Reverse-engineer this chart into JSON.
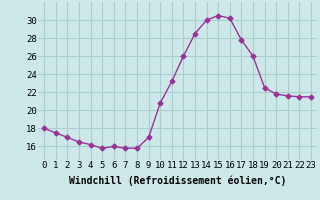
{
  "hours": [
    0,
    1,
    2,
    3,
    4,
    5,
    6,
    7,
    8,
    9,
    10,
    11,
    12,
    13,
    14,
    15,
    16,
    17,
    18,
    19,
    20,
    21,
    22,
    23
  ],
  "values": [
    18,
    17.5,
    17,
    16.5,
    16.2,
    15.8,
    16.0,
    15.8,
    15.8,
    17.0,
    20.8,
    23.2,
    26.0,
    28.5,
    30.0,
    30.5,
    30.2,
    27.8,
    26.0,
    22.5,
    21.8,
    21.6,
    21.5,
    21.5
  ],
  "line_color": "#993399",
  "marker": "D",
  "marker_size": 2.5,
  "bg_color": "#cce8e8",
  "grid_color": "#aacece",
  "xlabel": "Windchill (Refroidissement éolien,°C)",
  "xlim": [
    -0.5,
    23.5
  ],
  "ylim": [
    14.5,
    32
  ],
  "yticks": [
    16,
    18,
    20,
    22,
    24,
    26,
    28,
    30
  ],
  "xtick_labels": [
    "0",
    "1",
    "2",
    "3",
    "4",
    "5",
    "6",
    "7",
    "8",
    "9",
    "10",
    "11",
    "12",
    "13",
    "14",
    "15",
    "16",
    "17",
    "18",
    "19",
    "20",
    "21",
    "22",
    "23"
  ],
  "label_fontsize": 7,
  "tick_fontsize": 6.5
}
